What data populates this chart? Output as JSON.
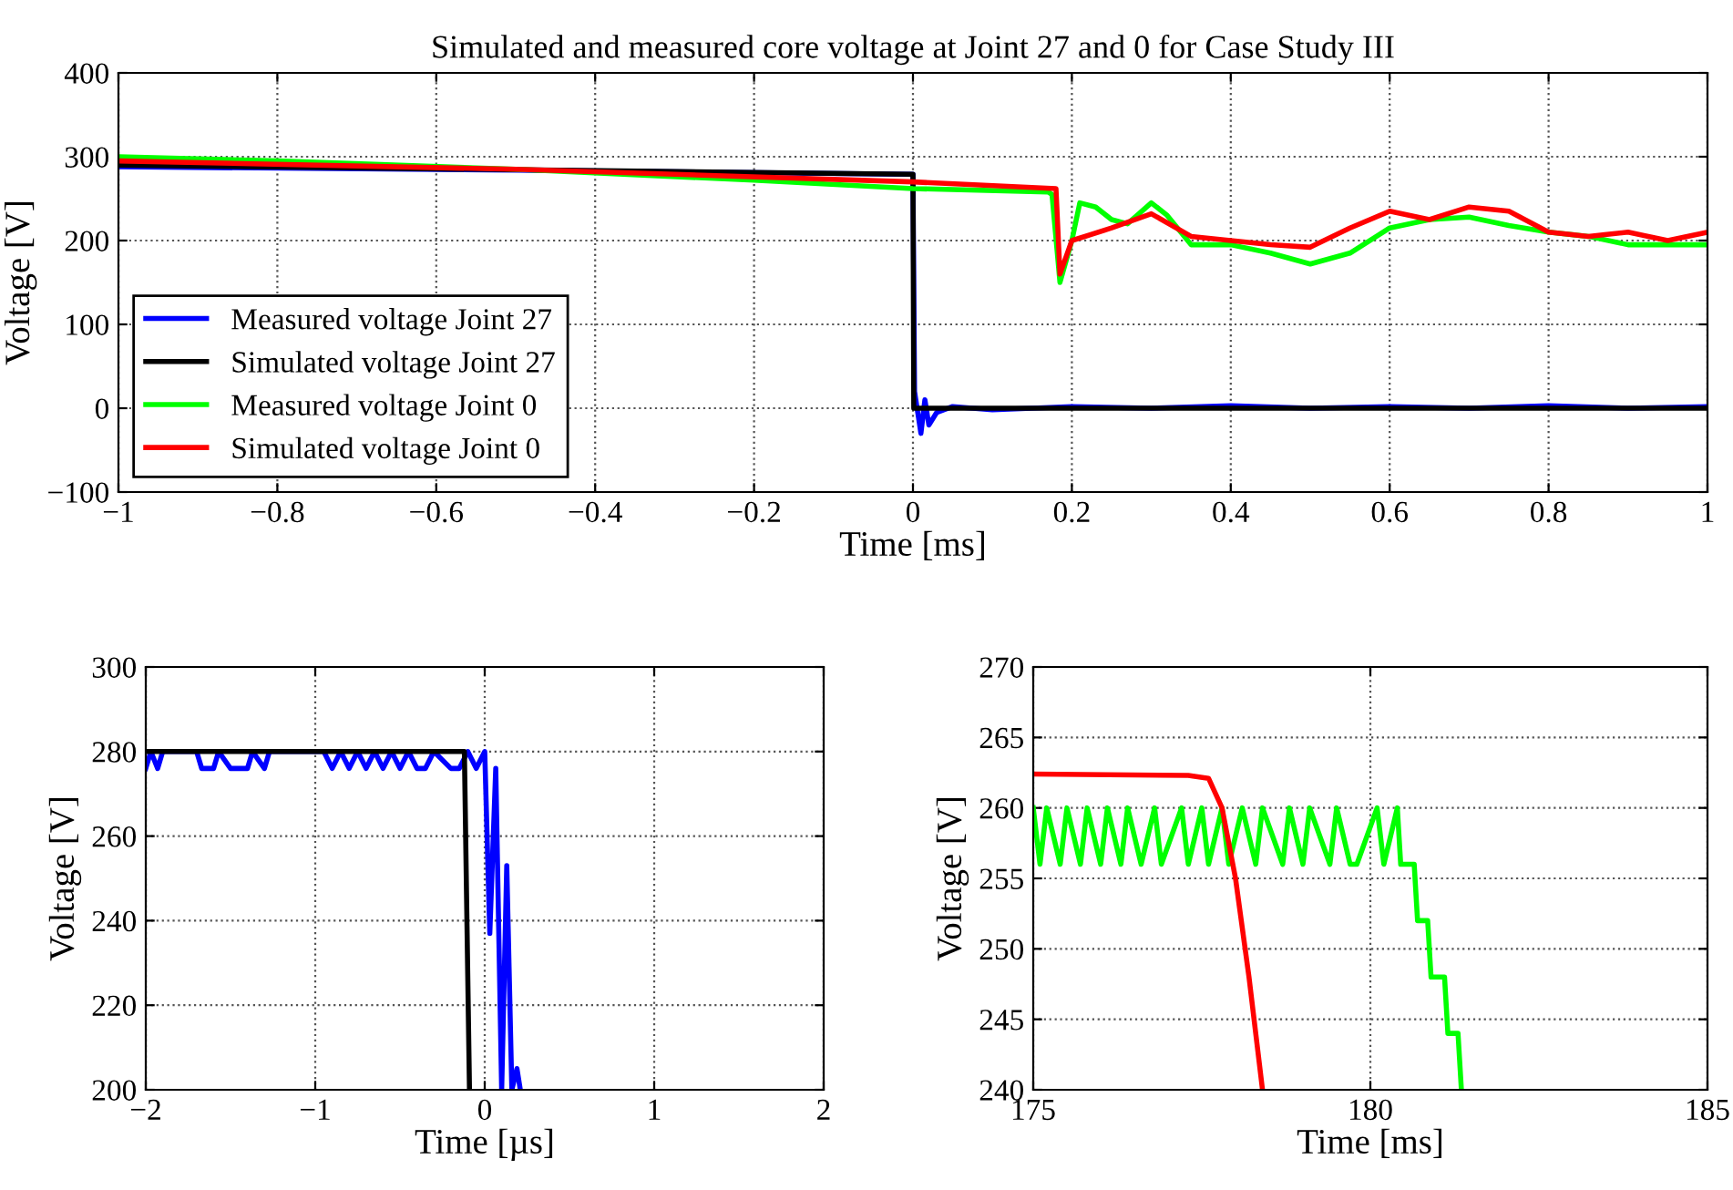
{
  "chart_data": [
    {
      "type": "line",
      "title": "Simulated and measured core voltage at Joint 27 and 0 for Case Study III",
      "xlabel": "Time [ms]",
      "ylabel": "Voltage [V]",
      "xlim": [
        -1,
        1
      ],
      "ylim": [
        -100,
        400
      ],
      "xticks": [
        -1,
        -0.8,
        -0.6,
        -0.4,
        -0.2,
        0,
        0.2,
        0.4,
        0.6,
        0.8,
        1
      ],
      "yticks": [
        -100,
        0,
        100,
        200,
        300,
        400
      ],
      "grid": true,
      "legend": "bottom left",
      "line_style": "solid",
      "marker": "none",
      "series": [
        {
          "name": "Measured voltage Joint 27",
          "color": "#0000ff",
          "x": [
            -1,
            -0.5,
            -0.01,
            0,
            0.002,
            0.01,
            0.015,
            0.02,
            0.03,
            0.05,
            0.1,
            0.2,
            0.3,
            0.4,
            0.5,
            0.6,
            0.7,
            0.8,
            0.9,
            1
          ],
          "values": [
            288,
            284,
            279,
            279,
            20,
            -30,
            10,
            -20,
            -5,
            2,
            -2,
            2,
            0,
            3,
            0,
            2,
            0,
            3,
            0,
            2
          ]
        },
        {
          "name": "Simulated voltage Joint 27",
          "color": "#000000",
          "x": [
            -1,
            0,
            0.001,
            1
          ],
          "values": [
            290,
            279,
            0,
            0
          ]
        },
        {
          "name": "Measured voltage Joint 0",
          "color": "#00ff00",
          "x": [
            -1,
            -0.8,
            -0.5,
            -0.2,
            0,
            0.17,
            0.175,
            0.185,
            0.2,
            0.21,
            0.23,
            0.25,
            0.27,
            0.3,
            0.32,
            0.35,
            0.4,
            0.45,
            0.5,
            0.55,
            0.6,
            0.65,
            0.7,
            0.75,
            0.8,
            0.85,
            0.9,
            1
          ],
          "values": [
            300,
            295,
            285,
            272,
            262,
            258,
            255,
            150,
            200,
            245,
            240,
            225,
            220,
            245,
            230,
            195,
            195,
            185,
            172,
            185,
            215,
            225,
            228,
            218,
            210,
            205,
            195,
            195
          ]
        },
        {
          "name": "Simulated voltage Joint 0",
          "color": "#ff0000",
          "x": [
            -1,
            -0.5,
            0,
            0.18,
            0.185,
            0.2,
            0.25,
            0.3,
            0.35,
            0.4,
            0.45,
            0.5,
            0.55,
            0.6,
            0.65,
            0.7,
            0.75,
            0.8,
            0.85,
            0.9,
            0.95,
            1
          ],
          "values": [
            295,
            285,
            270,
            262,
            160,
            200,
            215,
            232,
            205,
            200,
            195,
            192,
            215,
            235,
            225,
            240,
            235,
            210,
            205,
            210,
            200,
            210
          ]
        }
      ]
    },
    {
      "type": "line",
      "xlabel": "Time [µs]",
      "ylabel": "Voltage [V]",
      "xlim": [
        -2,
        2
      ],
      "ylim": [
        200,
        300
      ],
      "xticks": [
        -2,
        -1,
        0,
        1,
        2
      ],
      "yticks": [
        200,
        220,
        240,
        260,
        280,
        300
      ],
      "grid": true,
      "line_style": "solid",
      "marker": "none",
      "series": [
        {
          "color": "#0000ff",
          "x": [
            -2,
            -1.97,
            -1.93,
            -1.9,
            -1.7,
            -1.67,
            -1.6,
            -1.57,
            -1.5,
            -1.4,
            -1.37,
            -1.3,
            -1.27,
            -1.2,
            -0.95,
            -0.9,
            -0.85,
            -0.8,
            -0.75,
            -0.7,
            -0.65,
            -0.6,
            -0.55,
            -0.5,
            -0.45,
            -0.4,
            -0.35,
            -0.3,
            -0.2,
            -0.15,
            -0.1,
            -0.05,
            0,
            0.03,
            0.065,
            0.1,
            0.13,
            0.16,
            0.19,
            0.21
          ],
          "values": [
            276,
            280,
            276,
            280,
            280,
            276,
            276,
            280,
            276,
            276,
            280,
            276,
            280,
            280,
            280,
            276,
            280,
            276,
            280,
            276,
            280,
            276,
            280,
            276,
            280,
            276,
            276,
            280,
            276,
            276,
            280,
            276,
            280,
            237,
            276,
            200,
            253,
            200,
            205,
            200
          ]
        },
        {
          "color": "#000000",
          "x": [
            -2,
            -0.12,
            -0.09
          ],
          "values": [
            280,
            280,
            200
          ]
        }
      ]
    },
    {
      "type": "line",
      "xlabel": "Time [ms]",
      "ylabel": "Voltage [V]",
      "xlim": [
        175,
        185
      ],
      "ylim": [
        240,
        270
      ],
      "xticks": [
        175,
        180,
        185
      ],
      "yticks": [
        240,
        245,
        250,
        255,
        260,
        265,
        270
      ],
      "grid": true,
      "line_style": "solid",
      "marker": "none",
      "series": [
        {
          "color": "#00ff00",
          "x": [
            175,
            175.1,
            175.2,
            175.4,
            175.5,
            175.7,
            175.8,
            176,
            176.1,
            176.3,
            176.4,
            176.6,
            176.8,
            176.9,
            177.2,
            177.3,
            177.5,
            177.6,
            177.8,
            177.9,
            178.1,
            178.3,
            178.4,
            178.7,
            178.8,
            179,
            179.1,
            179.4,
            179.5,
            179.7,
            179.8,
            180.1,
            180.2,
            180.4,
            180.45,
            180.65,
            180.7,
            180.85,
            180.9,
            181.1,
            181.15,
            181.3,
            181.35
          ],
          "values": [
            260,
            256,
            260,
            256,
            260,
            256,
            260,
            256,
            260,
            256,
            260,
            256,
            260,
            256,
            260,
            256,
            260,
            256,
            260,
            256,
            260,
            256,
            260,
            256,
            260,
            256,
            260,
            256,
            260,
            256,
            256,
            260,
            256,
            260,
            256,
            256,
            252,
            252,
            248,
            248,
            244,
            244,
            240
          ]
        },
        {
          "color": "#ff0000",
          "x": [
            175,
            177.3,
            177.6,
            177.8,
            178,
            178.2,
            178.4
          ],
          "values": [
            262.4,
            262.3,
            262.1,
            260,
            255,
            248,
            240
          ]
        }
      ]
    }
  ]
}
